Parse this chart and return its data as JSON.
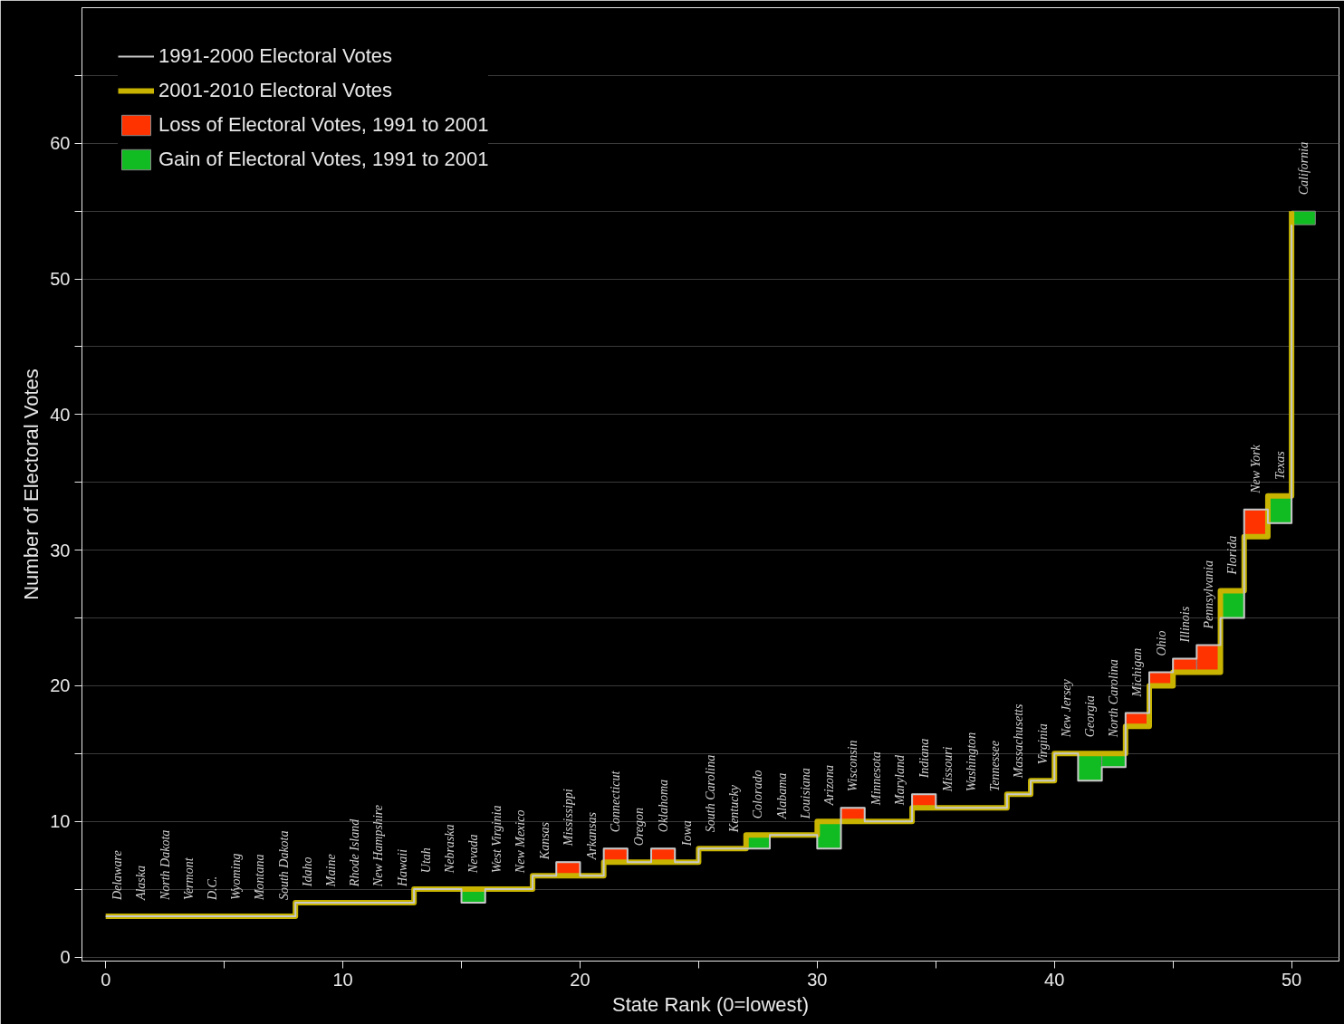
{
  "chart_data": {
    "type": "step",
    "xlabel": "State Rank (0=lowest)",
    "ylabel": "Number of Electoral Votes",
    "x": [
      0,
      1,
      2,
      3,
      4,
      5,
      6,
      7,
      8,
      9,
      10,
      11,
      12,
      13,
      14,
      15,
      16,
      17,
      18,
      19,
      20,
      21,
      22,
      23,
      24,
      25,
      26,
      27,
      28,
      29,
      30,
      31,
      32,
      33,
      34,
      35,
      36,
      37,
      38,
      39,
      40,
      41,
      42,
      43,
      44,
      45,
      46,
      47,
      48,
      49,
      50
    ],
    "series": [
      {
        "type": "bar",
        "name": "Loss of Electoral Votes, 1991 to 2001",
        "color": "#ff3300",
        "values": [
          null,
          null,
          null,
          null,
          null,
          null,
          null,
          null,
          null,
          null,
          null,
          null,
          null,
          null,
          null,
          null,
          null,
          null,
          null,
          1,
          null,
          1,
          null,
          1,
          null,
          null,
          null,
          null,
          null,
          null,
          null,
          1,
          null,
          null,
          1,
          null,
          null,
          null,
          null,
          null,
          null,
          null,
          null,
          1,
          1,
          1,
          2,
          null,
          2,
          null,
          null
        ],
        "base": [
          null,
          null,
          null,
          null,
          null,
          null,
          null,
          null,
          null,
          null,
          null,
          null,
          null,
          null,
          null,
          null,
          null,
          null,
          null,
          6,
          null,
          7,
          null,
          7,
          null,
          null,
          null,
          null,
          null,
          null,
          null,
          10,
          null,
          null,
          11,
          null,
          null,
          null,
          null,
          null,
          null,
          null,
          null,
          17,
          20,
          21,
          21,
          null,
          31,
          null,
          null
        ]
      },
      {
        "type": "bar",
        "name": "Gain of Electoral Votes, 1991 to 2001",
        "color": "#11bb22",
        "values": [
          null,
          null,
          null,
          null,
          null,
          null,
          null,
          null,
          null,
          null,
          null,
          null,
          null,
          null,
          null,
          1,
          null,
          null,
          null,
          null,
          null,
          null,
          null,
          null,
          null,
          null,
          null,
          1,
          null,
          null,
          2,
          null,
          null,
          null,
          null,
          null,
          null,
          null,
          null,
          null,
          null,
          2,
          1,
          null,
          null,
          null,
          null,
          2,
          null,
          2,
          1
        ],
        "base": [
          null,
          null,
          null,
          null,
          null,
          null,
          null,
          null,
          null,
          null,
          null,
          null,
          null,
          null,
          null,
          4,
          null,
          null,
          null,
          null,
          null,
          null,
          null,
          null,
          null,
          null,
          null,
          8,
          null,
          null,
          8,
          null,
          null,
          null,
          null,
          null,
          null,
          null,
          null,
          null,
          null,
          13,
          14,
          null,
          null,
          null,
          null,
          25,
          null,
          32,
          54
        ]
      },
      {
        "name": "1991-2000 Electoral Votes",
        "color": "#c8c8c8",
        "values": [
          3,
          3,
          3,
          3,
          3,
          3,
          3,
          3,
          4,
          4,
          4,
          4,
          4,
          5,
          5,
          4,
          5,
          5,
          6,
          7,
          6,
          8,
          7,
          8,
          7,
          8,
          8,
          8,
          9,
          9,
          8,
          11,
          10,
          10,
          12,
          11,
          11,
          11,
          12,
          13,
          15,
          13,
          14,
          18,
          21,
          22,
          23,
          25,
          33,
          32,
          54
        ]
      },
      {
        "name": "2001-2010 Electoral Votes",
        "color": "#c8b400",
        "values": [
          3,
          3,
          3,
          3,
          3,
          3,
          3,
          3,
          4,
          4,
          4,
          4,
          4,
          5,
          5,
          5,
          5,
          5,
          6,
          6,
          6,
          7,
          7,
          7,
          7,
          8,
          8,
          9,
          9,
          9,
          10,
          10,
          10,
          10,
          11,
          11,
          11,
          11,
          12,
          13,
          15,
          15,
          15,
          17,
          20,
          21,
          21,
          27,
          31,
          34,
          55
        ]
      }
    ],
    "xlim": [
      -1,
      52
    ],
    "ylim": [
      -0.3,
      70
    ],
    "xticks": [
      0,
      {
        "value": 5,
        "label": null
      },
      10,
      {
        "value": 15,
        "label": null
      },
      20,
      {
        "value": 25,
        "label": null
      },
      30,
      {
        "value": 35,
        "label": null
      },
      40,
      {
        "value": 45,
        "label": null
      },
      50
    ],
    "yticks": [
      0,
      {
        "value": 5,
        "label": null
      },
      10,
      {
        "value": 15,
        "label": null
      },
      20,
      {
        "value": 25,
        "label": null
      },
      30,
      {
        "value": 35,
        "label": null
      },
      40,
      {
        "value": 45,
        "label": null
      },
      50,
      {
        "value": 55,
        "label": null
      },
      60,
      {
        "value": 65,
        "label": null
      }
    ],
    "grid": "y",
    "legend": "top left",
    "annotations": [
      {
        "text": "Delaware",
        "x": 0,
        "y": 3
      },
      {
        "text": "Alaska",
        "x": 1,
        "y": 3
      },
      {
        "text": "North Dakota",
        "x": 2,
        "y": 3
      },
      {
        "text": "Vermont",
        "x": 3,
        "y": 3
      },
      {
        "text": "D.C.",
        "x": 4,
        "y": 3
      },
      {
        "text": "Wyoming",
        "x": 5,
        "y": 3
      },
      {
        "text": "Montana",
        "x": 6,
        "y": 3
      },
      {
        "text": "South Dakota",
        "x": 7,
        "y": 3
      },
      {
        "text": "Idaho",
        "x": 8,
        "y": 4
      },
      {
        "text": "Maine",
        "x": 9,
        "y": 4
      },
      {
        "text": "Rhode Island",
        "x": 10,
        "y": 4
      },
      {
        "text": "New Hampshire",
        "x": 11,
        "y": 4
      },
      {
        "text": "Hawaii",
        "x": 12,
        "y": 4
      },
      {
        "text": "Utah",
        "x": 13,
        "y": 5
      },
      {
        "text": "Nebraska",
        "x": 14,
        "y": 5
      },
      {
        "text": "Nevada",
        "x": 15,
        "y": 5
      },
      {
        "text": "West Virginia",
        "x": 16,
        "y": 5
      },
      {
        "text": "New Mexico",
        "x": 17,
        "y": 5
      },
      {
        "text": "Kansas",
        "x": 18,
        "y": 6
      },
      {
        "text": "Mississippi",
        "x": 19,
        "y": 7
      },
      {
        "text": "Arkansas",
        "x": 20,
        "y": 6
      },
      {
        "text": "Connecticut",
        "x": 21,
        "y": 8
      },
      {
        "text": "Oregon",
        "x": 22,
        "y": 7
      },
      {
        "text": "Oklahoma",
        "x": 23,
        "y": 8
      },
      {
        "text": "Iowa",
        "x": 24,
        "y": 7
      },
      {
        "text": "South Carolina",
        "x": 25,
        "y": 8
      },
      {
        "text": "Kentucky",
        "x": 26,
        "y": 8
      },
      {
        "text": "Colorado",
        "x": 27,
        "y": 9
      },
      {
        "text": "Alabama",
        "x": 28,
        "y": 9
      },
      {
        "text": "Louisiana",
        "x": 29,
        "y": 9
      },
      {
        "text": "Arizona",
        "x": 30,
        "y": 10
      },
      {
        "text": "Wisconsin",
        "x": 31,
        "y": 11
      },
      {
        "text": "Minnesota",
        "x": 32,
        "y": 10
      },
      {
        "text": "Maryland",
        "x": 33,
        "y": 10
      },
      {
        "text": "Indiana",
        "x": 34,
        "y": 12
      },
      {
        "text": "Missouri",
        "x": 35,
        "y": 11
      },
      {
        "text": "Washington",
        "x": 36,
        "y": 11
      },
      {
        "text": "Tennessee",
        "x": 37,
        "y": 11
      },
      {
        "text": "Massachusetts",
        "x": 38,
        "y": 12
      },
      {
        "text": "Virginia",
        "x": 39,
        "y": 13
      },
      {
        "text": "New Jersey",
        "x": 40,
        "y": 15
      },
      {
        "text": "Georgia",
        "x": 41,
        "y": 15
      },
      {
        "text": "North Carolina",
        "x": 42,
        "y": 15
      },
      {
        "text": "Michigan",
        "x": 43,
        "y": 18
      },
      {
        "text": "Ohio",
        "x": 44,
        "y": 21
      },
      {
        "text": "Illinois",
        "x": 45,
        "y": 22
      },
      {
        "text": "Pennsylvania",
        "x": 46,
        "y": 23
      },
      {
        "text": "Florida",
        "x": 47,
        "y": 27
      },
      {
        "text": "New York",
        "x": 48,
        "y": 33
      },
      {
        "text": "Texas",
        "x": 49,
        "y": 34
      },
      {
        "text": "California",
        "x": 50,
        "y": 55
      }
    ]
  }
}
